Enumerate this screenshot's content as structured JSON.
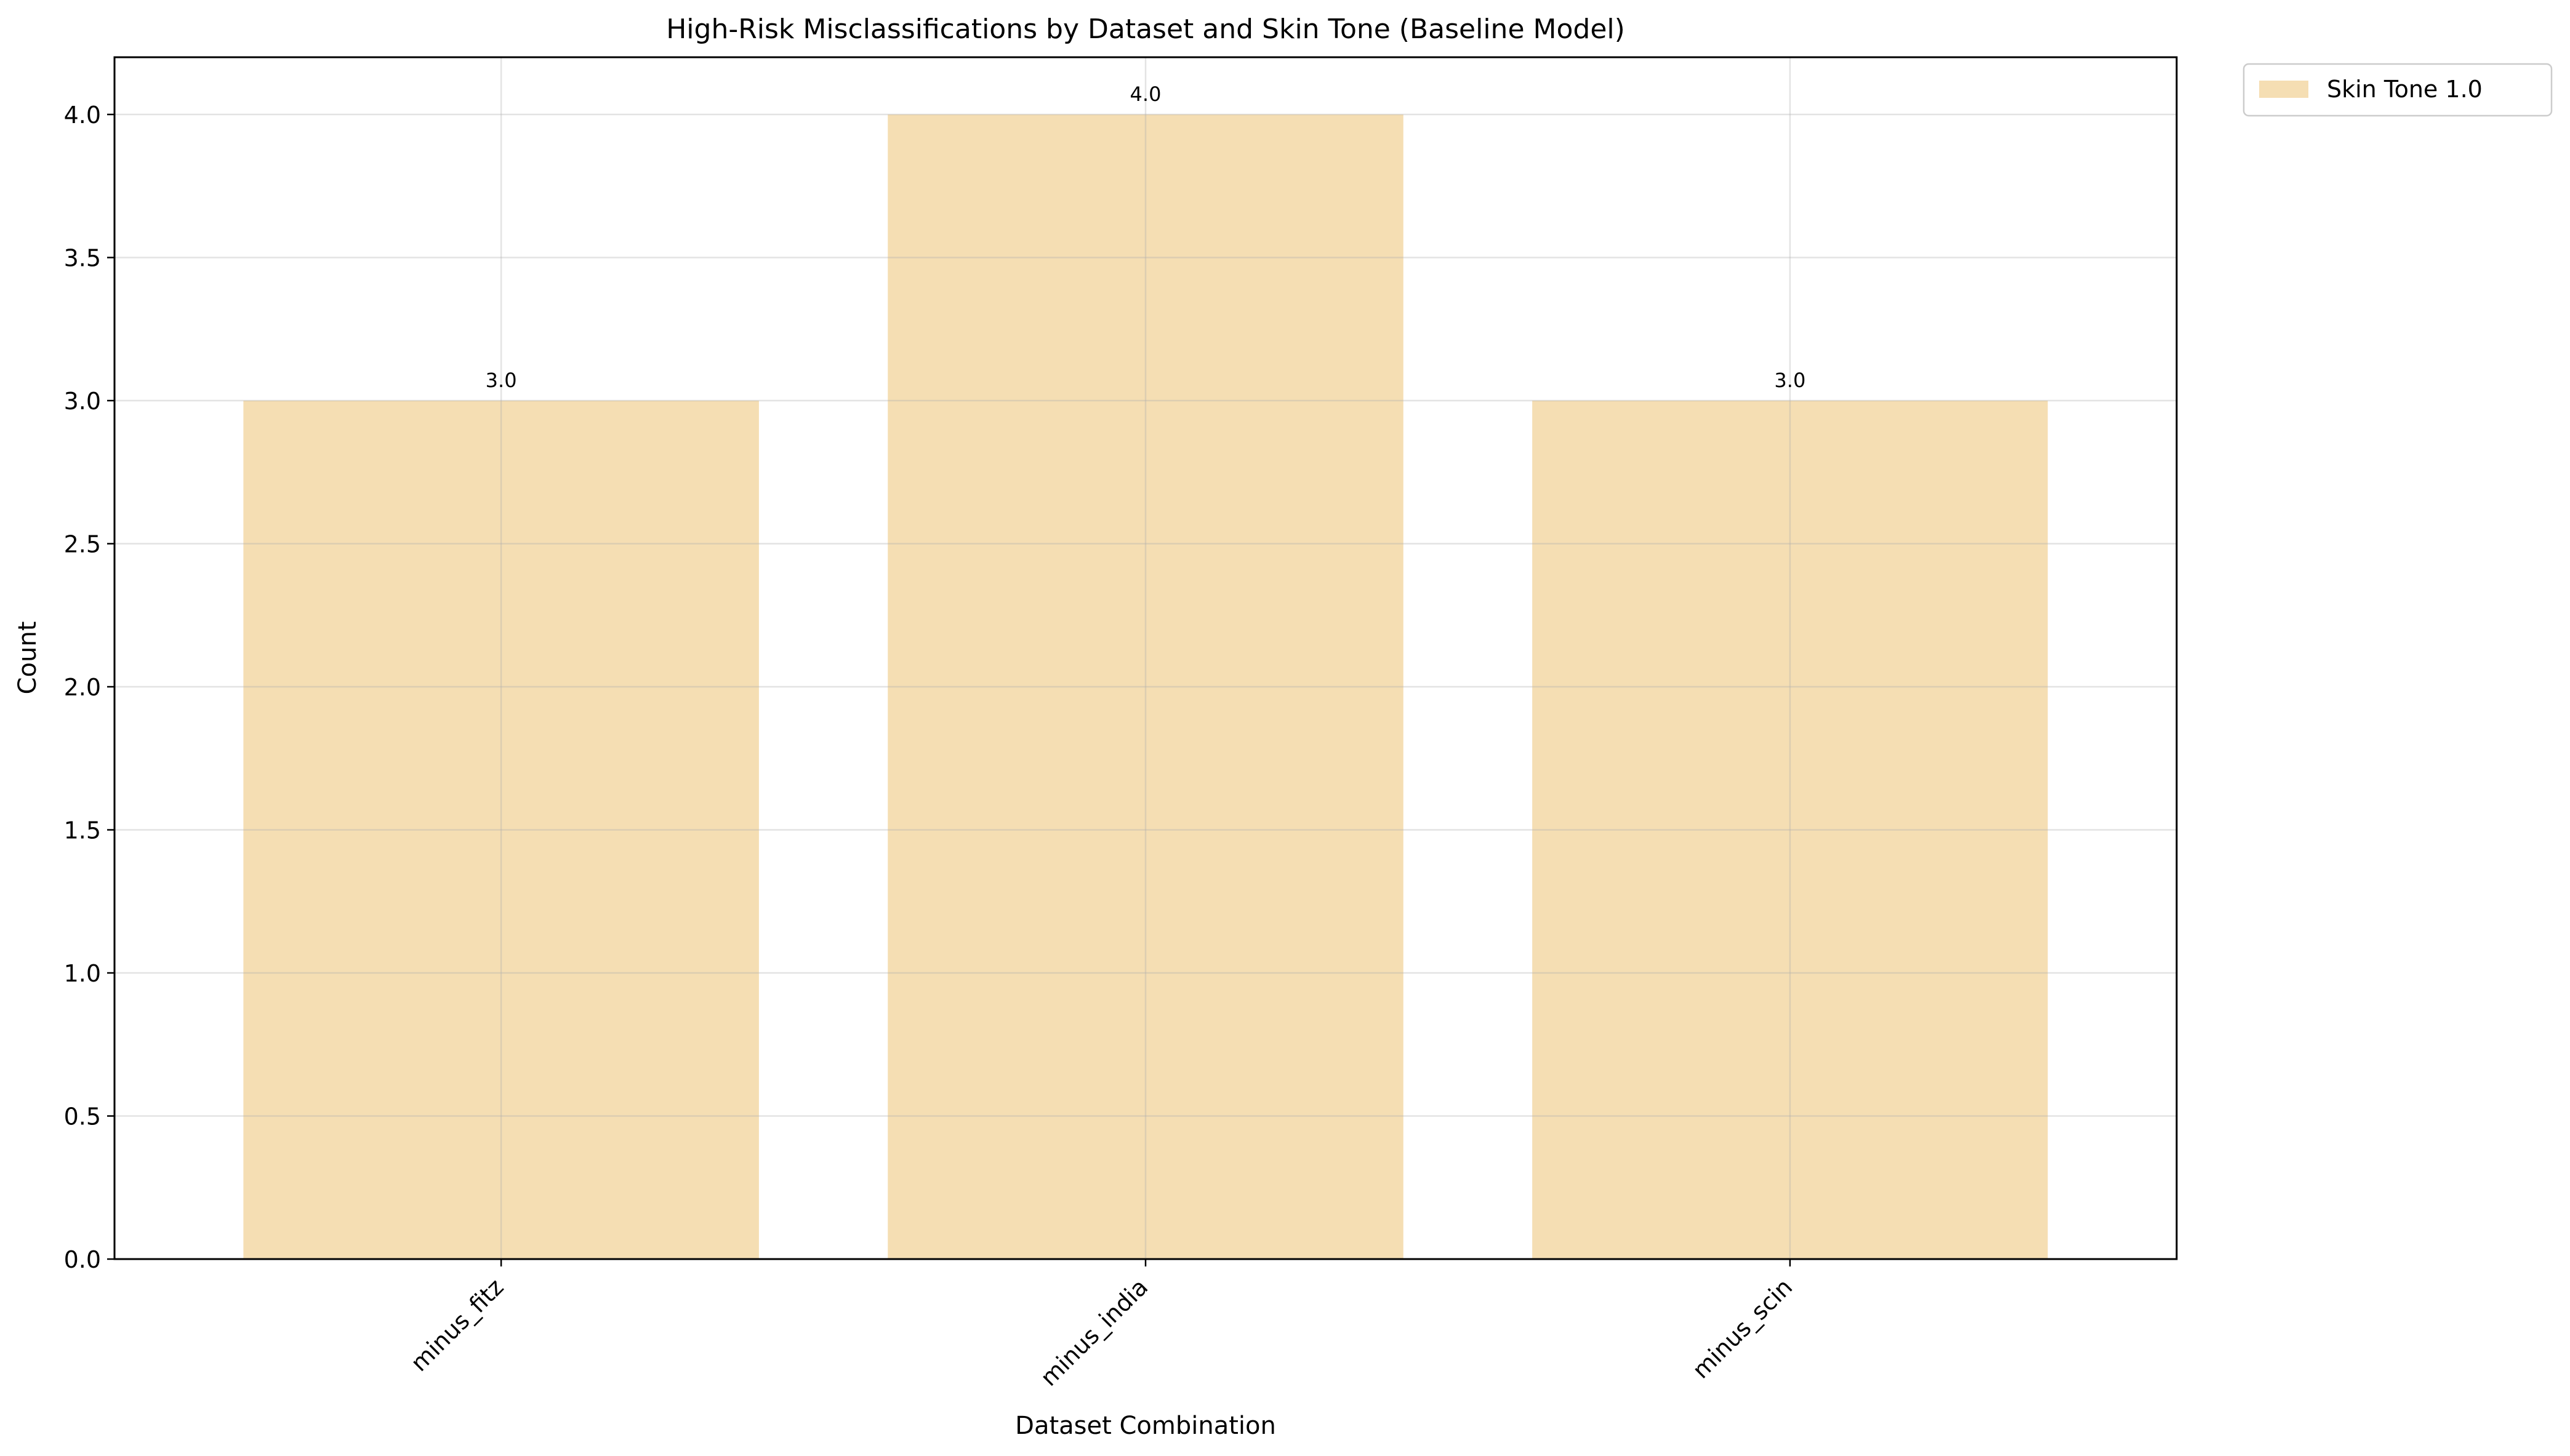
{
  "chart_data": {
    "type": "bar",
    "title": "High-Risk Misclassifications by Dataset and Skin Tone (Baseline Model)",
    "xlabel": "Dataset Combination",
    "ylabel": "Count",
    "categories": [
      "minus_fitz",
      "minus_india",
      "minus_scin"
    ],
    "series": [
      {
        "name": "Skin Tone 1.0",
        "values": [
          3.0,
          4.0,
          3.0
        ],
        "color": "#f5deb3"
      }
    ],
    "data_labels": [
      "3.0",
      "4.0",
      "3.0"
    ],
    "ylim": [
      0,
      4.2
    ],
    "yticks": [
      0.0,
      0.5,
      1.0,
      1.5,
      2.0,
      2.5,
      3.0,
      3.5,
      4.0
    ],
    "ytick_labels": [
      "0.0",
      "0.5",
      "1.0",
      "1.5",
      "2.0",
      "2.5",
      "3.0",
      "3.5",
      "4.0"
    ],
    "grid": true,
    "legend_position": "outside-top-right"
  }
}
